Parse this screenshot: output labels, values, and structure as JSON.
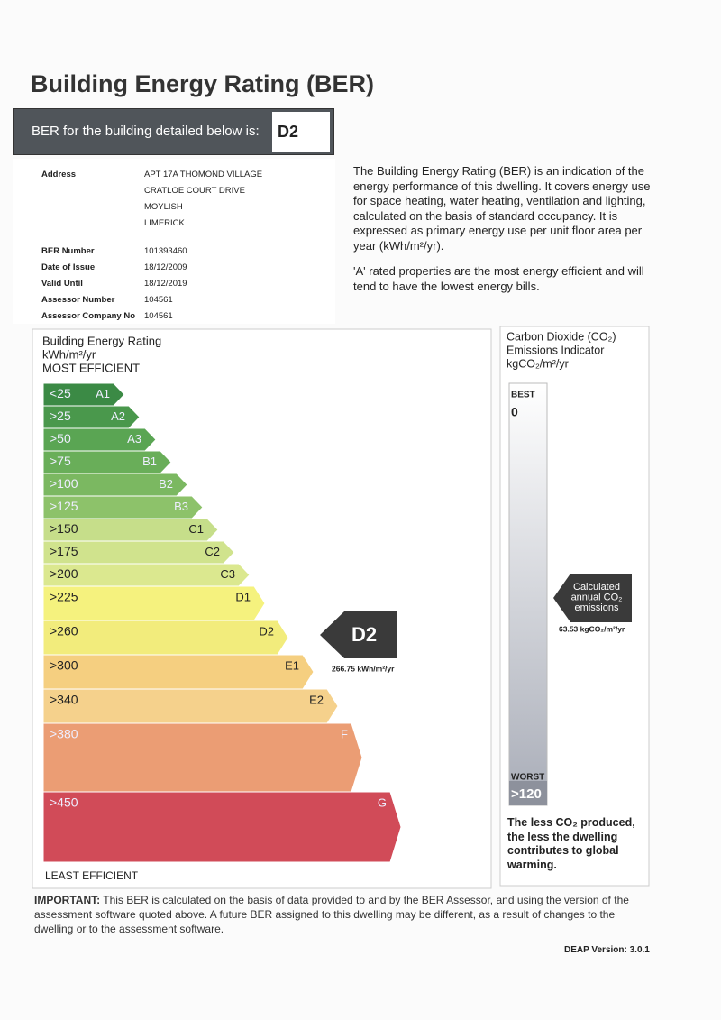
{
  "header": {
    "title": "Building Energy Rating (BER)",
    "banner_label": "BER for the building detailed below is:",
    "banner_rating": "D2"
  },
  "details": {
    "address_label": "Address",
    "address_lines": [
      "APT 17A THOMOND VILLAGE",
      "CRATLOE COURT DRIVE",
      "MOYLISH",
      "LIMERICK"
    ],
    "fields": [
      {
        "label": "BER Number",
        "value": "101393460"
      },
      {
        "label": "Date of Issue",
        "value": "18/12/2009"
      },
      {
        "label": "Valid Until",
        "value": "18/12/2019"
      },
      {
        "label": "Assessor Number",
        "value": "104561"
      },
      {
        "label": "Assessor Company No",
        "value": "104561"
      }
    ]
  },
  "description": [
    "The Building Energy Rating (BER) is an indication of the energy performance of this dwelling. It covers energy use for space heating, water heating, ventilation and lighting, calculated on the basis of standard occupancy. It is expressed as primary energy use per unit floor area per year (kWh/m²/yr).",
    "'A' rated properties are the most energy efficient and will tend to have the lowest energy bills."
  ],
  "scale": {
    "heading": [
      "Building Energy Rating",
      "kWh/m²/yr",
      "MOST EFFICIENT"
    ],
    "least": "LEAST EFFICIENT",
    "bands": [
      {
        "range": "<25",
        "grade": "A1",
        "color": "#3b8a45"
      },
      {
        "range": ">25",
        "grade": "A2",
        "color": "#4a984c"
      },
      {
        "range": ">50",
        "grade": "A3",
        "color": "#5aa553"
      },
      {
        "range": ">75",
        "grade": "B1",
        "color": "#69ae59"
      },
      {
        "range": ">100",
        "grade": "B2",
        "color": "#7bb861"
      },
      {
        "range": ">125",
        "grade": "B3",
        "color": "#8dc26a"
      },
      {
        "range": ">150",
        "grade": "C1",
        "color": "#c6de8a"
      },
      {
        "range": ">175",
        "grade": "C2",
        "color": "#d0e38d"
      },
      {
        "range": ">200",
        "grade": "C3",
        "color": "#dbe88f"
      },
      {
        "range": ">225",
        "grade": "D1",
        "color": "#f5f27e"
      },
      {
        "range": ">260",
        "grade": "D2",
        "color": "#f2ec7c"
      },
      {
        "range": ">300",
        "grade": "E1",
        "color": "#f5cf80"
      },
      {
        "range": ">340",
        "grade": "E2",
        "color": "#f5d18c"
      },
      {
        "range": ">380",
        "grade": "F",
        "color": "#eb9d74"
      },
      {
        "range": ">450",
        "grade": "G",
        "color": "#d14b58"
      }
    ],
    "indicator_rating": "D2",
    "indicator_value": "266.75 kWh/m²/yr"
  },
  "co2": {
    "heading": [
      "Carbon Dioxide (CO₂)",
      "Emissions Indicator",
      "kgCO₂/m²/yr"
    ],
    "best_label": "BEST",
    "best_value": "0",
    "worst_label": "WORST",
    "worst_value": ">120",
    "pointer": [
      "Calculated",
      "annual CO₂",
      "emissions"
    ],
    "value": "63.53 kgCO₂/m²/yr",
    "note": "The less CO₂ produced, the less the dwelling contributes to global warming."
  },
  "footer": {
    "important_label": "IMPORTANT:",
    "important_text": "This BER is calculated on the basis of data provided to and by the BER Assessor, and using the version of the assessment software quoted above. A future BER assigned to this dwelling may be different, as a result of changes to the dwelling or to the assessment software.",
    "version": "DEAP Version: 3.0.1"
  }
}
